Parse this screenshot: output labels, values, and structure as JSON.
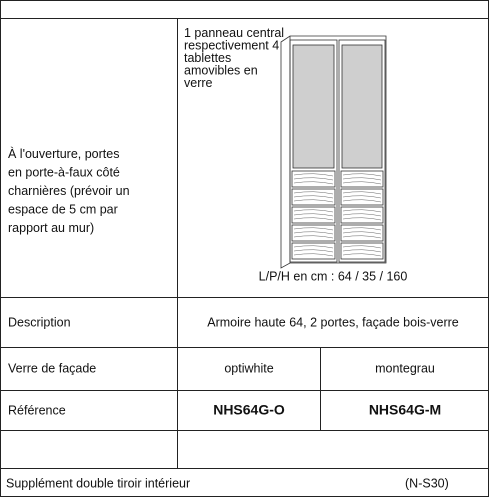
{
  "table": {
    "intro_lines": [
      "À l'ouverture, portes",
      "en porte-à-faux côté",
      "charnières (prévoir un",
      "espace de 5 cm par",
      "rapport au mur)"
    ],
    "note_lines": [
      "1 panneau central",
      "respectivement 4",
      "tablettes",
      "amovibles en",
      "verre"
    ],
    "dimensions": "L/P/H en cm : 64 / 35 / 160",
    "rows": [
      [
        "Description",
        "Armoire haute 64, 2 portes, façade bois-verre"
      ],
      [
        "Verre de façade",
        "optiwhite",
        "montegrau"
      ],
      [
        "Référence",
        "NHS64G-O",
        "NHS64G-M"
      ]
    ],
    "supplement": [
      "Supplément double tiroir intérieur",
      "(N-S30)"
    ]
  }
}
